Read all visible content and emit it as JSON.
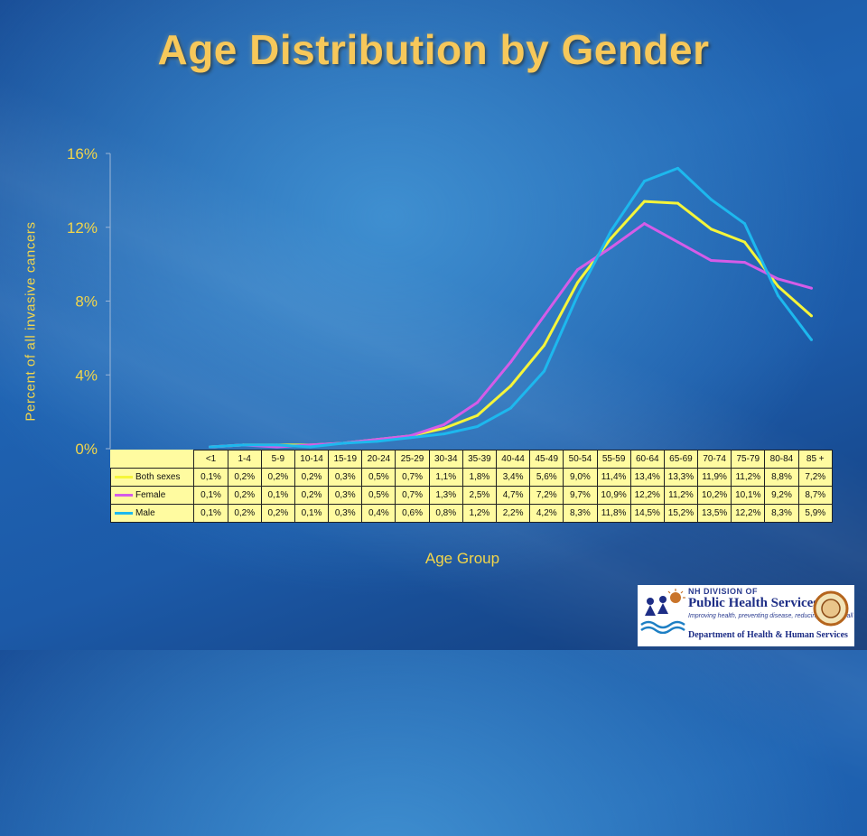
{
  "slide": {
    "title": "Age Distribution by Gender"
  },
  "chart_data": {
    "type": "line",
    "ylabel": "Percent of all invasive cancers",
    "xlabel": "Age Group",
    "ylim": [
      0,
      16
    ],
    "yticks": [
      "0%",
      "4%",
      "8%",
      "12%",
      "16%"
    ],
    "categories": [
      "<1",
      "1-4",
      "5-9",
      "10-14",
      "15-19",
      "20-24",
      "25-29",
      "30-34",
      "35-39",
      "40-44",
      "45-49",
      "50-54",
      "55-59",
      "60-64",
      "65-69",
      "70-74",
      "75-79",
      "80-84",
      "85 +"
    ],
    "series": [
      {
        "name": "Both sexes",
        "color": "#f5f53a",
        "values": [
          0.1,
          0.2,
          0.2,
          0.2,
          0.3,
          0.5,
          0.7,
          1.1,
          1.8,
          3.4,
          5.6,
          9.0,
          11.4,
          13.4,
          13.3,
          11.9,
          11.2,
          8.8,
          7.2
        ],
        "labels": [
          "0,1%",
          "0,2%",
          "0,2%",
          "0,2%",
          "0,3%",
          "0,5%",
          "0,7%",
          "1,1%",
          "1,8%",
          "3,4%",
          "5,6%",
          "9,0%",
          "11,4%",
          "13,4%",
          "13,3%",
          "11,9%",
          "11,2%",
          "8,8%",
          "7,2%"
        ]
      },
      {
        "name": "Female",
        "color": "#d55ce8",
        "values": [
          0.1,
          0.2,
          0.1,
          0.2,
          0.3,
          0.5,
          0.7,
          1.3,
          2.5,
          4.7,
          7.2,
          9.7,
          10.9,
          12.2,
          11.2,
          10.2,
          10.1,
          9.2,
          8.7
        ],
        "labels": [
          "0,1%",
          "0,2%",
          "0,1%",
          "0,2%",
          "0,3%",
          "0,5%",
          "0,7%",
          "1,3%",
          "2,5%",
          "4,7%",
          "7,2%",
          "9,7%",
          "10,9%",
          "12,2%",
          "11,2%",
          "10,2%",
          "10,1%",
          "9,2%",
          "8,7%"
        ]
      },
      {
        "name": "Male",
        "color": "#1db8ee",
        "values": [
          0.1,
          0.2,
          0.2,
          0.1,
          0.3,
          0.4,
          0.6,
          0.8,
          1.2,
          2.2,
          4.2,
          8.3,
          11.8,
          14.5,
          15.2,
          13.5,
          12.2,
          8.3,
          5.9
        ],
        "labels": [
          "0,1%",
          "0,2%",
          "0,2%",
          "0,1%",
          "0,3%",
          "0,4%",
          "0,6%",
          "0,8%",
          "1,2%",
          "2,2%",
          "4,2%",
          "8,3%",
          "11,8%",
          "14,5%",
          "15,2%",
          "13,5%",
          "12,2%",
          "8,3%",
          "5,9%"
        ]
      }
    ]
  },
  "logo": {
    "line1": "NH DIVISION OF",
    "line2": "Public Health Services",
    "line3": "Improving health, preventing disease, reducing costs for all",
    "line4": "Department of Health & Human Services"
  }
}
